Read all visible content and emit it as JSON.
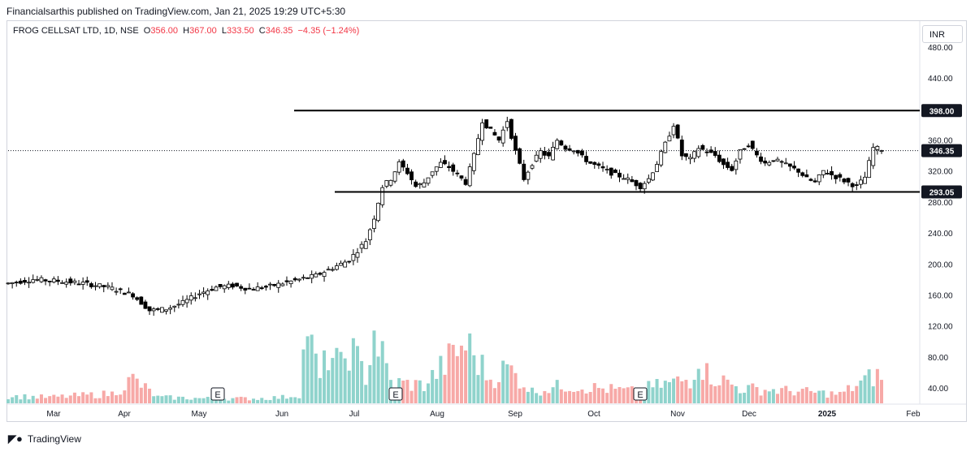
{
  "header": {
    "published_by": "Financialsarthis published on TradingView.com, Jan 21, 2025 19:29 UTC+5:30"
  },
  "legend": {
    "symbol": "FROG CELLSAT LTD, 1D, NSE",
    "o_label": "O",
    "o": "356.00",
    "h_label": "H",
    "h": "367.00",
    "l_label": "L",
    "l": "333.50",
    "c_label": "C",
    "c": "346.35",
    "change": "−4.35 (−1.24%)"
  },
  "currency": "INR",
  "footer": {
    "brand": "TradingView"
  },
  "colors": {
    "up": "#26a69a",
    "down": "#ef5350",
    "vol_up": "#8fd3cc",
    "vol_down": "#f7a9a7",
    "line": "#000000",
    "current": "#131722"
  },
  "chart_data": {
    "type": "candlestick",
    "title": "",
    "y_ticks": [
      "40.00",
      "80.00",
      "120.00",
      "160.00",
      "200.00",
      "240.00",
      "280.00",
      "320.00",
      "360.00",
      "400.00",
      "440.00",
      "480.00"
    ],
    "ylim": [
      0,
      480
    ],
    "x_ticks": [
      "Mar",
      "Apr",
      "May",
      "Jun",
      "Jul",
      "Aug",
      "Sep",
      "Oct",
      "Nov",
      "Dec",
      "2025",
      "Feb"
    ],
    "price_labels": {
      "resistance": "398.00",
      "current": "346.35",
      "support": "293.05"
    },
    "horizontal_lines": [
      {
        "name": "resistance",
        "value": 398.0,
        "from": "Jun",
        "to": "end"
      },
      {
        "name": "support",
        "value": 293.05,
        "from": "Jun",
        "to": "end"
      }
    ],
    "earnings_markers": [
      "E",
      "E",
      "E"
    ],
    "price_path": [
      [
        0,
        175
      ],
      [
        6,
        180
      ],
      [
        12,
        178
      ],
      [
        18,
        175
      ],
      [
        24,
        170
      ],
      [
        30,
        160
      ],
      [
        34,
        140
      ],
      [
        38,
        142
      ],
      [
        42,
        150
      ],
      [
        46,
        162
      ],
      [
        50,
        170
      ],
      [
        54,
        172
      ],
      [
        58,
        168
      ],
      [
        62,
        170
      ],
      [
        66,
        175
      ],
      [
        70,
        180
      ],
      [
        74,
        185
      ],
      [
        78,
        195
      ],
      [
        82,
        205
      ],
      [
        86,
        230
      ],
      [
        88,
        260
      ],
      [
        90,
        300
      ],
      [
        92,
        310
      ],
      [
        94,
        330
      ],
      [
        96,
        318
      ],
      [
        98,
        300
      ],
      [
        100,
        305
      ],
      [
        102,
        320
      ],
      [
        104,
        330
      ],
      [
        106,
        325
      ],
      [
        108,
        315
      ],
      [
        110,
        305
      ],
      [
        112,
        340
      ],
      [
        114,
        385
      ],
      [
        116,
        372
      ],
      [
        118,
        360
      ],
      [
        120,
        385
      ],
      [
        122,
        345
      ],
      [
        124,
        310
      ],
      [
        126,
        330
      ],
      [
        128,
        345
      ],
      [
        130,
        338
      ],
      [
        132,
        360
      ],
      [
        134,
        350
      ],
      [
        136,
        348
      ],
      [
        138,
        338
      ],
      [
        140,
        330
      ],
      [
        142,
        325
      ],
      [
        144,
        320
      ],
      [
        146,
        315
      ],
      [
        148,
        312
      ],
      [
        150,
        306
      ],
      [
        152,
        300
      ],
      [
        154,
        310
      ],
      [
        156,
        330
      ],
      [
        158,
        355
      ],
      [
        160,
        380
      ],
      [
        162,
        340
      ],
      [
        164,
        335
      ],
      [
        166,
        350
      ],
      [
        168,
        345
      ],
      [
        170,
        340
      ],
      [
        172,
        328
      ],
      [
        174,
        322
      ],
      [
        176,
        345
      ],
      [
        178,
        355
      ],
      [
        180,
        340
      ],
      [
        182,
        330
      ],
      [
        184,
        335
      ],
      [
        186,
        330
      ],
      [
        188,
        325
      ],
      [
        190,
        320
      ],
      [
        192,
        310
      ],
      [
        194,
        305
      ],
      [
        196,
        320
      ],
      [
        198,
        315
      ],
      [
        200,
        310
      ],
      [
        202,
        305
      ],
      [
        204,
        300
      ],
      [
        206,
        312
      ],
      [
        208,
        350
      ],
      [
        210,
        348
      ]
    ],
    "volume_path": [
      [
        0,
        12
      ],
      [
        10,
        10
      ],
      [
        20,
        14
      ],
      [
        25,
        16
      ],
      [
        30,
        40
      ],
      [
        36,
        10
      ],
      [
        48,
        8
      ],
      [
        60,
        8
      ],
      [
        66,
        10
      ],
      [
        70,
        15
      ],
      [
        72,
        140
      ],
      [
        73,
        90
      ],
      [
        75,
        40
      ],
      [
        77,
        85
      ],
      [
        80,
        60
      ],
      [
        82,
        95
      ],
      [
        86,
        45
      ],
      [
        88,
        120
      ],
      [
        92,
        35
      ],
      [
        100,
        30
      ],
      [
        110,
        100
      ],
      [
        112,
        80
      ],
      [
        116,
        40
      ],
      [
        120,
        60
      ],
      [
        126,
        20
      ],
      [
        134,
        30
      ],
      [
        150,
        20
      ],
      [
        160,
        35
      ],
      [
        164,
        40
      ],
      [
        166,
        80
      ],
      [
        168,
        50
      ],
      [
        176,
        25
      ],
      [
        190,
        20
      ],
      [
        200,
        15
      ],
      [
        208,
        45
      ]
    ]
  }
}
